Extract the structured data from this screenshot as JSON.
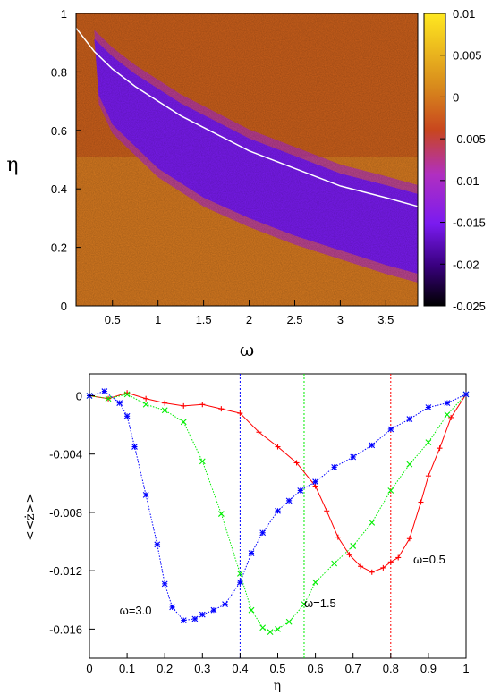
{
  "chart_data": [
    {
      "type": "heatmap",
      "xlabel": "ω",
      "ylabel": "η",
      "xlim": [
        0.1,
        3.85
      ],
      "ylim": [
        0,
        1
      ],
      "x_ticks": [
        "0.5",
        "1",
        "1.5",
        "2",
        "2.5",
        "3",
        "3.5"
      ],
      "y_ticks": [
        "0",
        "0.2",
        "0.4",
        "0.6",
        "0.8",
        "1"
      ],
      "colorbar": {
        "range": [
          -0.025,
          0.01
        ],
        "ticks": [
          "0.01",
          "0.005",
          "0",
          "-0.005",
          "-0.01",
          "-0.015",
          "-0.02",
          "-0.025"
        ],
        "palette": [
          "#000000",
          "#3a0080",
          "#7a1bf0",
          "#b12fc0",
          "#c8461e",
          "#d88a1c",
          "#ffe820"
        ]
      },
      "overlay_curve": {
        "color": "#ffffff",
        "x": [
          0.1,
          0.3,
          0.5,
          0.75,
          1.0,
          1.25,
          1.5,
          1.75,
          2.0,
          2.5,
          3.0,
          3.5,
          3.85
        ],
        "y": [
          0.95,
          0.87,
          0.81,
          0.75,
          0.7,
          0.65,
          0.61,
          0.57,
          0.53,
          0.47,
          0.41,
          0.37,
          0.34
        ]
      },
      "band_floor_x": [
        0.35,
        0.5,
        1.0,
        1.5,
        2.0,
        2.5,
        3.0,
        3.5,
        3.85
      ],
      "band_floor_y": [
        0.72,
        0.62,
        0.47,
        0.37,
        0.3,
        0.24,
        0.19,
        0.14,
        0.11
      ]
    },
    {
      "type": "line",
      "xlabel": "η",
      "ylabel": "<<ż>>",
      "xlim": [
        0,
        1
      ],
      "ylim": [
        -0.018,
        0.0015
      ],
      "x_ticks": [
        "0",
        "0.1",
        "0.2",
        "0.3",
        "0.4",
        "0.5",
        "0.6",
        "0.7",
        "0.8",
        "0.9",
        "1"
      ],
      "y_ticks": [
        "0",
        "-0.004",
        "-0.008",
        "-0.012",
        "-0.016"
      ],
      "series": [
        {
          "name": "ω=0.5",
          "color": "#ff0000",
          "marker": "plus",
          "vline": 0.8,
          "x": [
            0,
            0.05,
            0.1,
            0.15,
            0.2,
            0.25,
            0.3,
            0.35,
            0.4,
            0.45,
            0.5,
            0.55,
            0.6,
            0.63,
            0.66,
            0.69,
            0.72,
            0.75,
            0.78,
            0.8,
            0.82,
            0.85,
            0.88,
            0.9,
            0.93,
            0.96,
            1.0
          ],
          "y": [
            0,
            -0.0002,
            0.0002,
            -0.0002,
            -0.0005,
            -0.0007,
            -0.0006,
            -0.0009,
            -0.0012,
            -0.0025,
            -0.0035,
            -0.0046,
            -0.0062,
            -0.0079,
            -0.0097,
            -0.0109,
            -0.0117,
            -0.0121,
            -0.0118,
            -0.0114,
            -0.0111,
            -0.0098,
            -0.0073,
            -0.0055,
            -0.0036,
            -0.0015,
            0.0001
          ]
        },
        {
          "name": "ω=1.5",
          "color": "#00ee00",
          "marker": "cross",
          "vline": 0.57,
          "x": [
            0,
            0.05,
            0.1,
            0.15,
            0.2,
            0.25,
            0.3,
            0.35,
            0.4,
            0.43,
            0.46,
            0.48,
            0.5,
            0.53,
            0.57,
            0.6,
            0.65,
            0.7,
            0.75,
            0.8,
            0.85,
            0.9,
            0.95,
            1.0
          ],
          "y": [
            0,
            -0.0002,
            0.0001,
            -0.0006,
            -0.001,
            -0.0018,
            -0.0045,
            -0.0081,
            -0.0122,
            -0.0147,
            -0.0159,
            -0.0162,
            -0.016,
            -0.0155,
            -0.0143,
            -0.0128,
            -0.0115,
            -0.0103,
            -0.0087,
            -0.0065,
            -0.0047,
            -0.0032,
            -0.0013,
            0.0001
          ]
        },
        {
          "name": "ω=3.0",
          "color": "#0000ff",
          "marker": "star",
          "vline": 0.4,
          "x": [
            0,
            0.04,
            0.08,
            0.1,
            0.12,
            0.15,
            0.18,
            0.2,
            0.22,
            0.25,
            0.28,
            0.3,
            0.33,
            0.36,
            0.4,
            0.43,
            0.46,
            0.5,
            0.53,
            0.56,
            0.6,
            0.65,
            0.7,
            0.75,
            0.8,
            0.85,
            0.9,
            0.95,
            1.0
          ],
          "y": [
            0,
            0.0003,
            -0.0005,
            -0.0014,
            -0.0035,
            -0.0068,
            -0.0102,
            -0.0129,
            -0.0145,
            -0.0154,
            -0.0153,
            -0.015,
            -0.0147,
            -0.0143,
            -0.0128,
            -0.0108,
            -0.0094,
            -0.0079,
            -0.0072,
            -0.0065,
            -0.0059,
            -0.0049,
            -0.0042,
            -0.0034,
            -0.0023,
            -0.0016,
            -0.0008,
            -0.0005,
            0.0001
          ]
        }
      ],
      "annotations": [
        {
          "text": "ω=3.0",
          "x": 0.08,
          "y": -0.0147
        },
        {
          "text": "ω=1.5",
          "x": 0.57,
          "y": -0.0142
        },
        {
          "text": "ω=0.5",
          "x": 0.86,
          "y": -0.0112
        }
      ]
    }
  ]
}
